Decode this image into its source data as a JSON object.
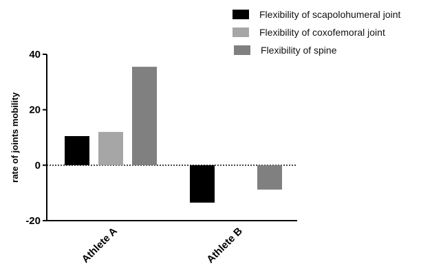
{
  "chart_data": {
    "type": "bar",
    "categories": [
      "Athlete A",
      "Athlete B"
    ],
    "series": [
      {
        "name": "Flexibility of scapolohumeral joint",
        "values": [
          10.5,
          -13.5
        ],
        "color": "#000000"
      },
      {
        "name": "Flexibility of coxofemoral joint",
        "values": [
          12,
          0
        ],
        "color": "#a6a6a6"
      },
      {
        "name": "Flexibility of spine",
        "values": [
          35.5,
          -8.8
        ],
        "color": "#808080"
      }
    ],
    "title": "",
    "xlabel": "",
    "ylabel": "rate of joints mobility",
    "ylim": [
      -20,
      40
    ],
    "yticks": [
      -20,
      0,
      20,
      40
    ],
    "ytick_labels": [
      "-20",
      "0",
      "20",
      "40"
    ],
    "grid": false,
    "legend_position": "top-right",
    "zero_line": "dashed"
  }
}
